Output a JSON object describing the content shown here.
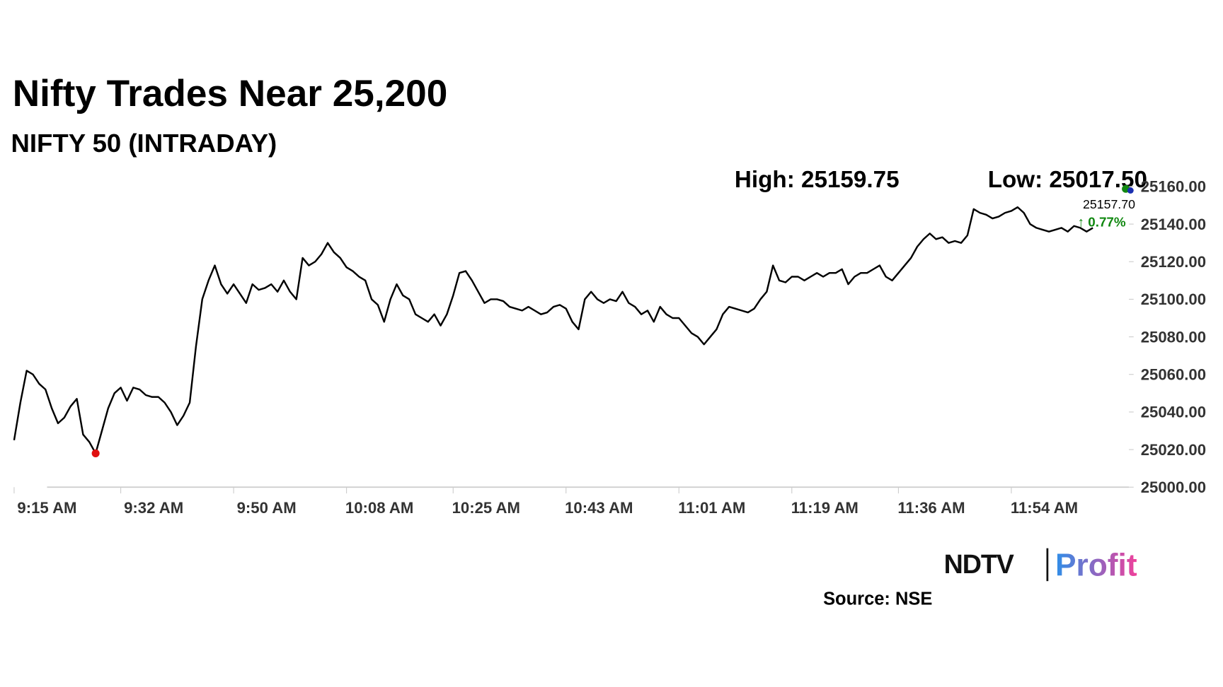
{
  "chart_data": {
    "type": "line",
    "title": "Nifty Trades Near 25,200",
    "subtitle": "NIFTY 50 (INTRADAY)",
    "high_label": "High: 25159.75",
    "low_label": "Low: 25017.50",
    "last_price": "25157.70",
    "change": "↑ 0.77%",
    "source": "Source: NSE",
    "logo": {
      "brand": "NDTV",
      "product": "Profit"
    },
    "x": [
      "9:15 AM",
      "9:16 AM",
      "9:17 AM",
      "9:18 AM",
      "9:19 AM",
      "9:20 AM",
      "9:21 AM",
      "9:22 AM",
      "9:23 AM",
      "9:24 AM",
      "9:25 AM",
      "9:26 AM",
      "9:27 AM",
      "9:28 AM",
      "9:29 AM",
      "9:30 AM",
      "9:31 AM",
      "9:32 AM",
      "9:33 AM",
      "9:34 AM",
      "9:35 AM",
      "9:36 AM",
      "9:37 AM",
      "9:38 AM",
      "9:39 AM",
      "9:40 AM",
      "9:41 AM",
      "9:42 AM",
      "9:43 AM",
      "9:44 AM",
      "9:45 AM",
      "9:46 AM",
      "9:47 AM",
      "9:48 AM",
      "9:49 AM",
      "9:50 AM",
      "9:51 AM",
      "9:52 AM",
      "9:53 AM",
      "9:54 AM",
      "9:55 AM",
      "9:56 AM",
      "9:57 AM",
      "9:58 AM",
      "9:59 AM",
      "10:00 AM",
      "10:01 AM",
      "10:02 AM",
      "10:03 AM",
      "10:04 AM",
      "10:05 AM",
      "10:06 AM",
      "10:07 AM",
      "10:08 AM",
      "10:09 AM",
      "10:10 AM",
      "10:11 AM",
      "10:12 AM",
      "10:13 AM",
      "10:14 AM",
      "10:15 AM",
      "10:16 AM",
      "10:17 AM",
      "10:18 AM",
      "10:19 AM",
      "10:20 AM",
      "10:21 AM",
      "10:22 AM",
      "10:23 AM",
      "10:24 AM",
      "10:25 AM",
      "10:26 AM",
      "10:27 AM",
      "10:28 AM",
      "10:29 AM",
      "10:30 AM",
      "10:31 AM",
      "10:32 AM",
      "10:33 AM",
      "10:34 AM",
      "10:35 AM",
      "10:36 AM",
      "10:37 AM",
      "10:38 AM",
      "10:39 AM",
      "10:40 AM",
      "10:41 AM",
      "10:42 AM",
      "10:43 AM",
      "10:44 AM",
      "10:45 AM",
      "10:46 AM",
      "10:47 AM",
      "10:48 AM",
      "10:49 AM",
      "10:50 AM",
      "10:51 AM",
      "10:52 AM",
      "10:53 AM",
      "10:54 AM",
      "10:55 AM",
      "10:56 AM",
      "10:57 AM",
      "10:58 AM",
      "10:59 AM",
      "11:00 AM",
      "11:01 AM",
      "11:02 AM",
      "11:03 AM",
      "11:04 AM",
      "11:05 AM",
      "11:06 AM",
      "11:07 AM",
      "11:08 AM",
      "11:09 AM",
      "11:10 AM",
      "11:11 AM",
      "11:12 AM",
      "11:13 AM",
      "11:14 AM",
      "11:15 AM",
      "11:16 AM",
      "11:17 AM",
      "11:18 AM",
      "11:19 AM",
      "11:20 AM",
      "11:21 AM",
      "11:22 AM",
      "11:23 AM",
      "11:24 AM",
      "11:25 AM",
      "11:26 AM",
      "11:27 AM",
      "11:28 AM",
      "11:29 AM",
      "11:30 AM",
      "11:31 AM",
      "11:32 AM",
      "11:33 AM",
      "11:34 AM",
      "11:35 AM",
      "11:36 AM",
      "11:37 AM",
      "11:38 AM",
      "11:39 AM",
      "11:40 AM",
      "11:41 AM",
      "11:42 AM",
      "11:43 AM",
      "11:44 AM",
      "11:45 AM",
      "11:46 AM",
      "11:47 AM",
      "11:48 AM",
      "11:49 AM",
      "11:50 AM",
      "11:51 AM",
      "11:52 AM",
      "11:53 AM",
      "11:54 AM",
      "11:55 AM",
      "11:56 AM",
      "11:57 AM",
      "11:58 AM",
      "11:59 AM",
      "12:00 PM",
      "12:01 PM",
      "12:02 PM",
      "12:03 PM",
      "12:04 PM",
      "12:05 PM",
      "12:06 PM",
      "12:07 PM"
    ],
    "series": [
      {
        "name": "NIFTY 50",
        "color": "#000000",
        "values": [
          25025,
          25045,
          25062,
          25060,
          25055,
          25052,
          25042,
          25034,
          25037,
          25043,
          25047,
          25028,
          25024,
          25018,
          25030,
          25042,
          25050,
          25053,
          25046,
          25053,
          25052,
          25049,
          25048,
          25048,
          25045,
          25040,
          25033,
          25038,
          25045,
          25075,
          25100,
          25110,
          25118,
          25108,
          25103,
          25108,
          25103,
          25098,
          25108,
          25105,
          25106,
          25108,
          25104,
          25110,
          25104,
          25100,
          25122,
          25118,
          25120,
          25124,
          25130,
          25125,
          25122,
          25117,
          25115,
          25112,
          25110,
          25100,
          25097,
          25088,
          25100,
          25108,
          25102,
          25100,
          25092,
          25090,
          25088,
          25092,
          25086,
          25092,
          25102,
          25114,
          25115,
          25110,
          25104,
          25098,
          25100,
          25100,
          25099,
          25096,
          25095,
          25094,
          25096,
          25094,
          25092,
          25093,
          25096,
          25097,
          25095,
          25088,
          25084,
          25100,
          25104,
          25100,
          25098,
          25100,
          25099,
          25104,
          25098,
          25096,
          25092,
          25094,
          25088,
          25096,
          25092,
          25090,
          25090,
          25086,
          25082,
          25080,
          25076,
          25080,
          25084,
          25092,
          25096,
          25095,
          25094,
          25093,
          25095,
          25100,
          25104,
          25118,
          25110,
          25109,
          25112,
          25112,
          25110,
          25112,
          25114,
          25112,
          25114,
          25114,
          25116,
          25108,
          25112,
          25114,
          25114,
          25116,
          25118,
          25112,
          25110,
          25114,
          25118,
          25122,
          25128,
          25132,
          25135,
          25132,
          25133,
          25130,
          25131,
          25130,
          25134,
          25148,
          25146,
          25145,
          25143,
          25144,
          25146,
          25147,
          25149,
          25146,
          25140,
          25138,
          25137,
          25136,
          25137,
          25138,
          25136,
          25139,
          25138,
          25136,
          25138
        ]
      }
    ],
    "xticks": [
      "9:15 AM",
      "9:32 AM",
      "9:50 AM",
      "10:08 AM",
      "10:25 AM",
      "10:43 AM",
      "11:01 AM",
      "11:19 AM",
      "11:36 AM",
      "11:54 AM"
    ],
    "ylim": [
      25000,
      25160
    ],
    "yticks": [
      {
        "value": 25000,
        "label": "25000.00"
      },
      {
        "value": 25020,
        "label": "25020.00"
      },
      {
        "value": 25040,
        "label": "25040.00"
      },
      {
        "value": 25060,
        "label": "25060.00"
      },
      {
        "value": 25080,
        "label": "25080.00"
      },
      {
        "value": 25100,
        "label": "25100.00"
      },
      {
        "value": 25120,
        "label": "25120.00"
      },
      {
        "value": 25140,
        "label": "25140.00"
      },
      {
        "value": 25160,
        "label": "25160.00"
      }
    ],
    "grid": false
  }
}
